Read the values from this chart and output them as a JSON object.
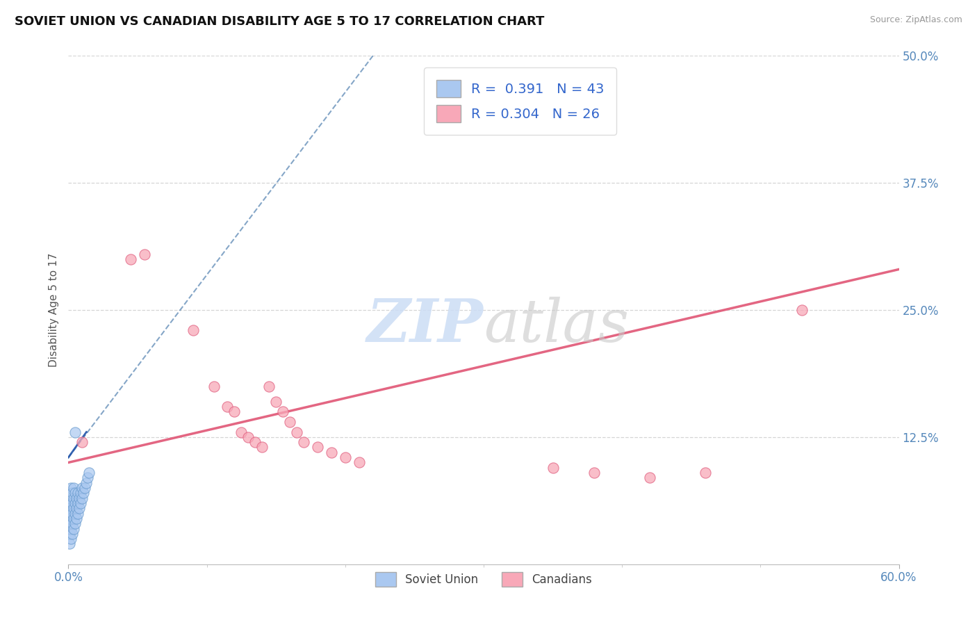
{
  "title": "SOVIET UNION VS CANADIAN DISABILITY AGE 5 TO 17 CORRELATION CHART",
  "source": "Source: ZipAtlas.com",
  "ylabel": "Disability Age 5 to 17",
  "xmin": 0.0,
  "xmax": 0.6,
  "ymin": 0.0,
  "ymax": 0.5,
  "ytick_values": [
    0.125,
    0.25,
    0.375,
    0.5
  ],
  "soviet_R": 0.391,
  "soviet_N": 43,
  "canadian_R": 0.304,
  "canadian_N": 26,
  "soviet_color": "#aac8f0",
  "canadian_color": "#f8a8b8",
  "soviet_edge_color": "#6699cc",
  "canadian_edge_color": "#e06080",
  "soviet_line_color": "#4477aa",
  "canadian_line_color": "#e05575",
  "watermark_color": "#ccddf5",
  "soviet_points_x": [
    0.001,
    0.001,
    0.001,
    0.001,
    0.001,
    0.002,
    0.002,
    0.002,
    0.002,
    0.002,
    0.002,
    0.003,
    0.003,
    0.003,
    0.003,
    0.003,
    0.004,
    0.004,
    0.004,
    0.004,
    0.004,
    0.005,
    0.005,
    0.005,
    0.005,
    0.006,
    0.006,
    0.006,
    0.007,
    0.007,
    0.007,
    0.008,
    0.008,
    0.009,
    0.009,
    0.01,
    0.01,
    0.011,
    0.012,
    0.013,
    0.014,
    0.015,
    0.005
  ],
  "soviet_points_y": [
    0.02,
    0.03,
    0.04,
    0.05,
    0.06,
    0.025,
    0.035,
    0.045,
    0.055,
    0.065,
    0.075,
    0.03,
    0.04,
    0.05,
    0.06,
    0.07,
    0.035,
    0.045,
    0.055,
    0.065,
    0.075,
    0.04,
    0.05,
    0.06,
    0.07,
    0.045,
    0.055,
    0.065,
    0.05,
    0.06,
    0.07,
    0.055,
    0.065,
    0.06,
    0.07,
    0.065,
    0.075,
    0.07,
    0.075,
    0.08,
    0.085,
    0.09,
    0.13
  ],
  "canadian_points_x": [
    0.045,
    0.055,
    0.09,
    0.105,
    0.115,
    0.12,
    0.125,
    0.13,
    0.135,
    0.14,
    0.145,
    0.15,
    0.155,
    0.16,
    0.165,
    0.17,
    0.18,
    0.19,
    0.2,
    0.21,
    0.35,
    0.38,
    0.42,
    0.46,
    0.53,
    0.01
  ],
  "canadian_points_y": [
    0.3,
    0.305,
    0.23,
    0.175,
    0.155,
    0.15,
    0.13,
    0.125,
    0.12,
    0.115,
    0.175,
    0.16,
    0.15,
    0.14,
    0.13,
    0.12,
    0.115,
    0.11,
    0.105,
    0.1,
    0.095,
    0.09,
    0.085,
    0.09,
    0.25,
    0.12
  ],
  "soviet_trendline_x0": 0.0,
  "soviet_trendline_y0": 0.105,
  "soviet_trendline_x1": 0.22,
  "soviet_trendline_y1": 0.5,
  "canadian_trendline_x0": 0.0,
  "canadian_trendline_y0": 0.1,
  "canadian_trendline_x1": 0.6,
  "canadian_trendline_y1": 0.29
}
